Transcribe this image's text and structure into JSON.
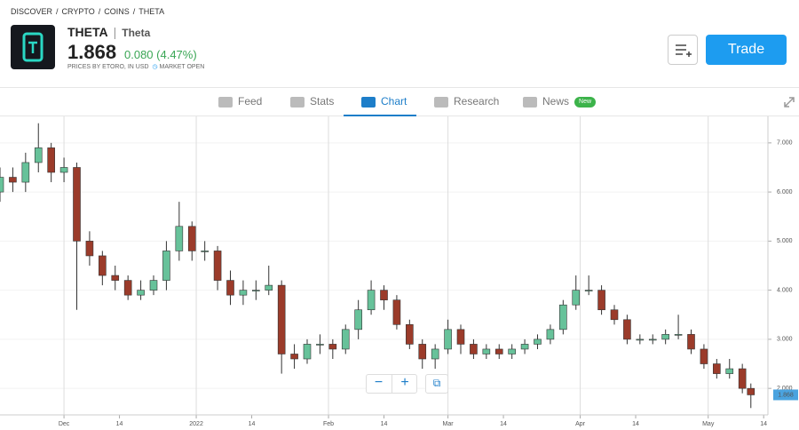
{
  "breadcrumb": [
    "DISCOVER",
    "CRYPTO",
    "COINS",
    "THETA"
  ],
  "header": {
    "symbol": "THETA",
    "name": "Theta",
    "price": "1.868",
    "change": "0.080 (4.47%)",
    "source": "PRICES BY ETORO, IN USD",
    "status": "MARKET OPEN",
    "trade": "Trade"
  },
  "tabs": [
    {
      "label": "Feed"
    },
    {
      "label": "Stats"
    },
    {
      "label": "Chart",
      "active": true
    },
    {
      "label": "Research"
    },
    {
      "label": "News",
      "badge": "New"
    }
  ],
  "chart_data": {
    "type": "candlestick",
    "up_color": "#67c29a",
    "down_color": "#9b3b2a",
    "grid": true,
    "x": [
      "2021-11-16",
      "2021-11-19",
      "2021-11-22",
      "2021-11-25",
      "2021-11-28",
      "2021-12-01",
      "2021-12-04",
      "2021-12-07",
      "2021-12-10",
      "2021-12-13",
      "2021-12-16",
      "2021-12-19",
      "2021-12-22",
      "2021-12-25",
      "2021-12-28",
      "2021-12-31",
      "2022-01-03",
      "2022-01-06",
      "2022-01-09",
      "2022-01-12",
      "2022-01-15",
      "2022-01-18",
      "2022-01-21",
      "2022-01-24",
      "2022-01-27",
      "2022-01-30",
      "2022-02-02",
      "2022-02-05",
      "2022-02-08",
      "2022-02-11",
      "2022-02-14",
      "2022-02-17",
      "2022-02-20",
      "2022-02-23",
      "2022-02-26",
      "2022-03-01",
      "2022-03-04",
      "2022-03-07",
      "2022-03-10",
      "2022-03-13",
      "2022-03-16",
      "2022-03-19",
      "2022-03-22",
      "2022-03-25",
      "2022-03-28",
      "2022-03-31",
      "2022-04-03",
      "2022-04-06",
      "2022-04-09",
      "2022-04-12",
      "2022-04-15",
      "2022-04-18",
      "2022-04-21",
      "2022-04-24",
      "2022-04-27",
      "2022-04-30",
      "2022-05-03",
      "2022-05-06",
      "2022-05-09",
      "2022-05-11"
    ],
    "open": [
      6.0,
      6.3,
      6.2,
      6.6,
      6.9,
      6.4,
      6.5,
      5.0,
      4.7,
      4.3,
      4.2,
      3.9,
      4.0,
      4.2,
      4.8,
      5.3,
      4.8,
      4.8,
      4.2,
      3.9,
      4.0,
      4.0,
      4.1,
      2.7,
      2.6,
      2.9,
      2.9,
      2.8,
      3.2,
      3.6,
      4.0,
      3.8,
      3.3,
      2.9,
      2.6,
      2.8,
      3.2,
      2.9,
      2.7,
      2.8,
      2.7,
      2.8,
      2.9,
      3.0,
      3.2,
      3.7,
      4.0,
      4.0,
      3.6,
      3.4,
      3.0,
      3.0,
      3.0,
      3.1,
      3.1,
      2.8,
      2.5,
      2.3,
      2.4,
      2.0
    ],
    "high": [
      6.5,
      6.5,
      6.8,
      7.4,
      7.0,
      6.7,
      6.6,
      5.2,
      4.8,
      4.5,
      4.3,
      4.2,
      4.3,
      5.0,
      5.8,
      5.4,
      5.0,
      4.9,
      4.4,
      4.2,
      4.2,
      4.5,
      4.2,
      2.9,
      3.0,
      3.1,
      3.0,
      3.3,
      3.8,
      4.2,
      4.1,
      3.9,
      3.4,
      3.0,
      2.9,
      3.4,
      3.3,
      3.0,
      2.9,
      2.9,
      2.9,
      3.0,
      3.1,
      3.3,
      3.8,
      4.3,
      4.3,
      4.1,
      3.7,
      3.5,
      3.1,
      3.1,
      3.2,
      3.5,
      3.2,
      2.9,
      2.6,
      2.6,
      2.5,
      2.1
    ],
    "low": [
      5.8,
      6.0,
      6.0,
      6.4,
      6.2,
      6.2,
      3.6,
      4.5,
      4.1,
      4.0,
      3.8,
      3.8,
      3.9,
      4.0,
      4.6,
      4.6,
      4.6,
      4.0,
      3.7,
      3.7,
      3.8,
      3.9,
      2.3,
      2.4,
      2.5,
      2.7,
      2.6,
      2.7,
      3.0,
      3.5,
      3.6,
      3.2,
      2.8,
      2.4,
      2.4,
      2.7,
      2.7,
      2.6,
      2.6,
      2.6,
      2.6,
      2.7,
      2.8,
      2.9,
      3.1,
      3.6,
      3.9,
      3.5,
      3.3,
      2.9,
      2.9,
      2.9,
      2.9,
      3.0,
      2.7,
      2.4,
      2.2,
      2.2,
      1.9,
      1.6
    ],
    "close": [
      6.3,
      6.2,
      6.6,
      6.9,
      6.4,
      6.5,
      5.0,
      4.7,
      4.3,
      4.2,
      3.9,
      4.0,
      4.2,
      4.8,
      5.3,
      4.8,
      4.8,
      4.2,
      3.9,
      4.0,
      4.0,
      4.1,
      2.7,
      2.6,
      2.9,
      2.9,
      2.8,
      3.2,
      3.6,
      4.0,
      3.8,
      3.3,
      2.9,
      2.6,
      2.8,
      3.2,
      2.9,
      2.7,
      2.8,
      2.7,
      2.8,
      2.9,
      3.0,
      3.2,
      3.7,
      4.0,
      4.0,
      3.6,
      3.4,
      3.0,
      3.0,
      3.0,
      3.1,
      3.1,
      2.8,
      2.5,
      2.3,
      2.4,
      2.0,
      1.868
    ],
    "xlim": [
      "2021-11-16",
      "2022-05-15"
    ],
    "xticks": [
      {
        "value": "2021-12-01",
        "label": "Dec"
      },
      {
        "value": "2021-12-14",
        "label": "14"
      },
      {
        "value": "2022-01-01",
        "label": "2022"
      },
      {
        "value": "2022-01-14",
        "label": "14"
      },
      {
        "value": "2022-02-01",
        "label": "Feb"
      },
      {
        "value": "2022-02-14",
        "label": "14"
      },
      {
        "value": "2022-03-01",
        "label": "Mar"
      },
      {
        "value": "2022-03-14",
        "label": "14"
      },
      {
        "value": "2022-04-01",
        "label": "Apr"
      },
      {
        "value": "2022-04-14",
        "label": "14"
      },
      {
        "value": "2022-05-01",
        "label": "May"
      },
      {
        "value": "2022-05-14",
        "label": "14"
      }
    ],
    "ylim": [
      1.46,
      7.54
    ],
    "yticks": [
      {
        "value": 2,
        "label": "2.000"
      },
      {
        "value": 3,
        "label": "3.000"
      },
      {
        "value": 4,
        "label": "4.000"
      },
      {
        "value": 5,
        "label": "5.000"
      },
      {
        "value": 6,
        "label": "6.000"
      },
      {
        "value": 7,
        "label": "7.000"
      }
    ]
  }
}
